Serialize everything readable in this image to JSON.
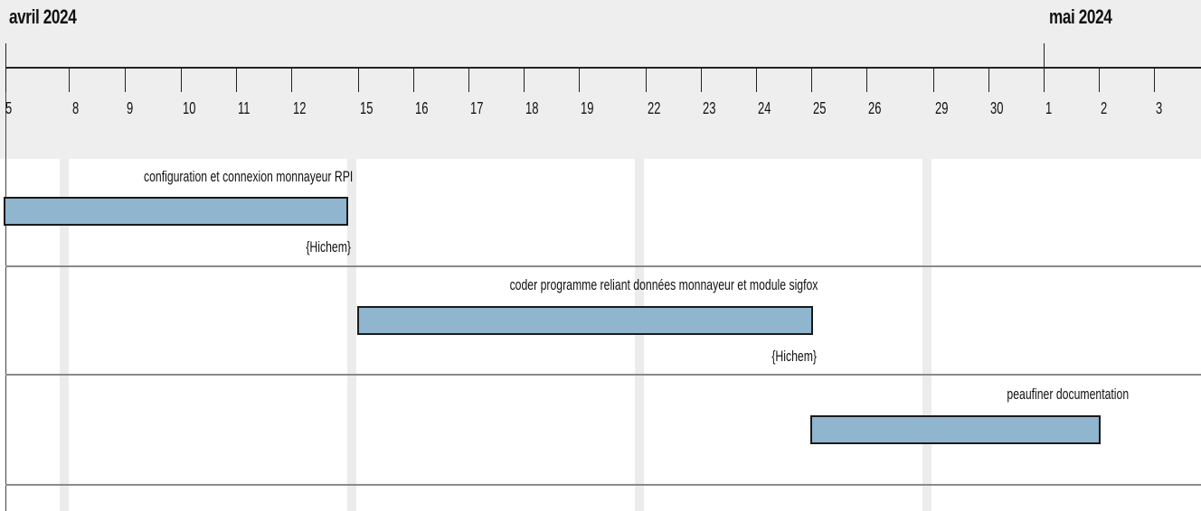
{
  "timeline": {
    "months": [
      {
        "label": "avril 2024"
      },
      {
        "label": "mai 2024"
      }
    ],
    "days": [
      "5",
      "8",
      "9",
      "10",
      "11",
      "12",
      "15",
      "16",
      "17",
      "18",
      "19",
      "22",
      "23",
      "24",
      "25",
      "26",
      "29",
      "30",
      "1",
      "2",
      "3"
    ]
  },
  "tasks": [
    {
      "name": "configuration et connexion monnayeur RPI",
      "resource": "{Hichem}"
    },
    {
      "name": "coder programme reliant données monnayeur et module sigfox",
      "resource": "{Hichem}"
    },
    {
      "name": "peaufiner documentation",
      "resource": ""
    }
  ],
  "colors": {
    "bar_fill": "#8fb5cf",
    "bar_border": "#1a1a1a",
    "header_bg": "#eeeeee",
    "weekend_bg": "#ececec"
  }
}
